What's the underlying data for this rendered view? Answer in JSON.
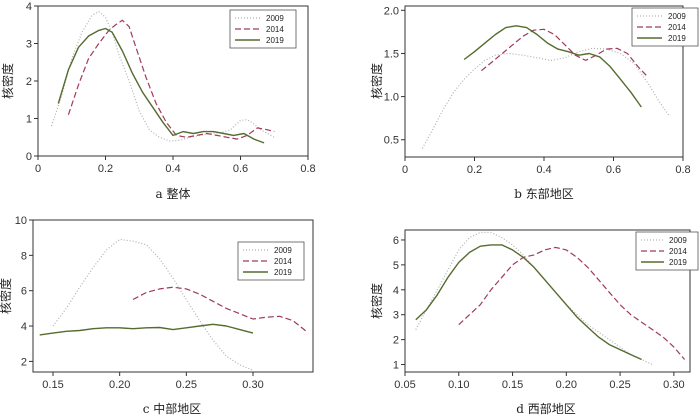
{
  "chart_data": [
    {
      "type": "line",
      "title": "a 整体",
      "ylabel": "核密度",
      "xlim": [
        0,
        0.8
      ],
      "ylim": [
        0,
        4
      ],
      "xticks": [
        0,
        0.2,
        0.4,
        0.6,
        0.8
      ],
      "xtick_labels": [
        "0",
        "0.2",
        "0.4",
        "0.6",
        "0.8"
      ],
      "yticks": [
        0,
        1,
        2,
        3,
        4
      ],
      "ytick_labels": [
        "0",
        "1",
        "2",
        "3",
        "4"
      ],
      "legend_position": "top-right",
      "series": [
        {
          "name": "2009",
          "color": "#b0b0b0",
          "style": "dotted",
          "x": [
            0.04,
            0.07,
            0.1,
            0.13,
            0.16,
            0.18,
            0.2,
            0.22,
            0.24,
            0.27,
            0.3,
            0.33,
            0.36,
            0.39,
            0.42,
            0.45,
            0.48,
            0.51,
            0.54,
            0.57,
            0.6,
            0.62,
            0.64,
            0.66,
            0.68,
            0.7
          ],
          "y": [
            0.8,
            1.6,
            2.6,
            3.3,
            3.75,
            3.85,
            3.7,
            3.3,
            2.7,
            2.0,
            1.2,
            0.7,
            0.5,
            0.4,
            0.42,
            0.5,
            0.55,
            0.6,
            0.62,
            0.7,
            0.95,
            0.97,
            0.85,
            0.7,
            0.6,
            0.5
          ]
        },
        {
          "name": "2014",
          "color": "#a03a5a",
          "style": "dashed",
          "x": [
            0.09,
            0.12,
            0.15,
            0.18,
            0.21,
            0.23,
            0.25,
            0.27,
            0.29,
            0.32,
            0.35,
            0.38,
            0.41,
            0.44,
            0.47,
            0.5,
            0.53,
            0.56,
            0.59,
            0.62,
            0.65,
            0.68,
            0.7
          ],
          "y": [
            1.1,
            1.9,
            2.6,
            3.0,
            3.35,
            3.5,
            3.62,
            3.45,
            2.9,
            2.1,
            1.4,
            0.9,
            0.55,
            0.5,
            0.55,
            0.6,
            0.55,
            0.5,
            0.45,
            0.55,
            0.75,
            0.7,
            0.65
          ]
        },
        {
          "name": "2019",
          "color": "#556b2f",
          "style": "solid",
          "x": [
            0.06,
            0.09,
            0.12,
            0.15,
            0.18,
            0.2,
            0.22,
            0.25,
            0.28,
            0.31,
            0.34,
            0.37,
            0.4,
            0.43,
            0.46,
            0.49,
            0.52,
            0.55,
            0.58,
            0.61,
            0.64,
            0.67
          ],
          "y": [
            1.4,
            2.3,
            2.9,
            3.2,
            3.35,
            3.4,
            3.3,
            2.8,
            2.2,
            1.7,
            1.3,
            0.9,
            0.55,
            0.65,
            0.6,
            0.65,
            0.65,
            0.6,
            0.55,
            0.6,
            0.45,
            0.35
          ]
        }
      ]
    },
    {
      "type": "line",
      "title": "b 东部地区",
      "ylabel": "核密度",
      "xlim": [
        0,
        0.8
      ],
      "ylim": [
        0.3,
        2.05
      ],
      "xticks": [
        0,
        0.2,
        0.4,
        0.6,
        0.8
      ],
      "xtick_labels": [
        "0",
        "0.2",
        "0.4",
        "0.6",
        "0.8"
      ],
      "yticks": [
        0.5,
        1.0,
        1.5,
        2.0
      ],
      "ytick_labels": [
        "0.5",
        "1.0",
        "1.5",
        "2.0"
      ],
      "legend_position": "top-right",
      "series": [
        {
          "name": "2009",
          "color": "#b0b0b0",
          "style": "dotted",
          "x": [
            0.05,
            0.08,
            0.11,
            0.14,
            0.17,
            0.2,
            0.23,
            0.26,
            0.3,
            0.34,
            0.38,
            0.42,
            0.46,
            0.5,
            0.54,
            0.58,
            0.62,
            0.66,
            0.7,
            0.73,
            0.76
          ],
          "y": [
            0.4,
            0.62,
            0.85,
            1.05,
            1.2,
            1.32,
            1.42,
            1.48,
            1.5,
            1.48,
            1.45,
            1.42,
            1.45,
            1.52,
            1.56,
            1.55,
            1.5,
            1.38,
            1.15,
            0.95,
            0.78
          ]
        },
        {
          "name": "2014",
          "color": "#a03a5a",
          "style": "dashed",
          "x": [
            0.22,
            0.25,
            0.28,
            0.31,
            0.34,
            0.37,
            0.4,
            0.43,
            0.46,
            0.49,
            0.52,
            0.55,
            0.58,
            0.61,
            0.64,
            0.67,
            0.7
          ],
          "y": [
            1.3,
            1.4,
            1.5,
            1.6,
            1.7,
            1.77,
            1.78,
            1.72,
            1.6,
            1.48,
            1.42,
            1.48,
            1.55,
            1.56,
            1.5,
            1.35,
            1.22
          ]
        },
        {
          "name": "2019",
          "color": "#556b2f",
          "style": "solid",
          "x": [
            0.17,
            0.2,
            0.23,
            0.26,
            0.29,
            0.32,
            0.35,
            0.38,
            0.41,
            0.44,
            0.47,
            0.5,
            0.53,
            0.56,
            0.59,
            0.62,
            0.65,
            0.68
          ],
          "y": [
            1.43,
            1.52,
            1.62,
            1.72,
            1.8,
            1.82,
            1.8,
            1.72,
            1.62,
            1.55,
            1.52,
            1.48,
            1.5,
            1.46,
            1.35,
            1.2,
            1.05,
            0.88
          ]
        }
      ]
    },
    {
      "type": "line",
      "title": "c 中部地区",
      "ylabel": "核密度",
      "xlim": [
        0.135,
        0.345
      ],
      "ylim": [
        1.4,
        10.0
      ],
      "xticks": [
        0.15,
        0.2,
        0.25,
        0.3
      ],
      "xtick_labels": [
        "0.15",
        "0.20",
        "0.25",
        "0.30"
      ],
      "yticks": [
        2,
        4,
        6,
        8,
        10
      ],
      "ytick_labels": [
        "2",
        "4",
        "6",
        "8",
        "10"
      ],
      "legend_position": "top-right",
      "series": [
        {
          "name": "2009",
          "color": "#b0b0b0",
          "style": "dotted",
          "x": [
            0.15,
            0.16,
            0.17,
            0.18,
            0.19,
            0.2,
            0.21,
            0.22,
            0.23,
            0.24,
            0.25,
            0.26,
            0.27,
            0.28,
            0.29,
            0.3
          ],
          "y": [
            4.0,
            5.0,
            6.2,
            7.3,
            8.3,
            8.9,
            8.8,
            8.6,
            7.8,
            6.7,
            5.5,
            4.3,
            3.2,
            2.3,
            1.8,
            1.5
          ]
        },
        {
          "name": "2014",
          "color": "#a03a5a",
          "style": "dashed",
          "x": [
            0.21,
            0.22,
            0.23,
            0.24,
            0.25,
            0.26,
            0.27,
            0.28,
            0.29,
            0.3,
            0.31,
            0.32,
            0.33,
            0.34
          ],
          "y": [
            5.5,
            5.9,
            6.1,
            6.2,
            6.1,
            5.8,
            5.4,
            5.0,
            4.7,
            4.4,
            4.5,
            4.55,
            4.3,
            3.7
          ]
        },
        {
          "name": "2019",
          "color": "#556b2f",
          "style": "solid",
          "x": [
            0.14,
            0.15,
            0.16,
            0.17,
            0.18,
            0.19,
            0.2,
            0.21,
            0.22,
            0.23,
            0.24,
            0.25,
            0.26,
            0.27,
            0.28,
            0.29,
            0.3
          ],
          "y": [
            3.5,
            3.6,
            3.7,
            3.75,
            3.85,
            3.9,
            3.9,
            3.85,
            3.9,
            3.92,
            3.8,
            3.9,
            4.0,
            4.1,
            4.0,
            3.8,
            3.6
          ]
        }
      ]
    },
    {
      "type": "line",
      "title": "d 西部地区",
      "ylabel": "核密度",
      "xlim": [
        0.05,
        0.315
      ],
      "ylim": [
        0.7,
        6.4
      ],
      "xticks": [
        0.05,
        0.1,
        0.15,
        0.2,
        0.25,
        0.3
      ],
      "xtick_labels": [
        "0.05",
        "0.10",
        "0.15",
        "0.20",
        "0.25",
        "0.30"
      ],
      "yticks": [
        1,
        2,
        3,
        4,
        5,
        6
      ],
      "ytick_labels": [
        "1",
        "2",
        "3",
        "4",
        "5",
        "6"
      ],
      "legend_position": "top-right",
      "series": [
        {
          "name": "2009",
          "color": "#b0b0b0",
          "style": "dotted",
          "x": [
            0.06,
            0.07,
            0.08,
            0.09,
            0.1,
            0.11,
            0.12,
            0.13,
            0.14,
            0.15,
            0.16,
            0.17,
            0.18,
            0.19,
            0.2,
            0.21,
            0.22,
            0.23,
            0.24,
            0.25,
            0.26,
            0.27,
            0.28
          ],
          "y": [
            2.4,
            3.2,
            4.0,
            4.8,
            5.6,
            6.1,
            6.3,
            6.3,
            6.1,
            5.8,
            5.4,
            4.9,
            4.4,
            3.9,
            3.4,
            3.0,
            2.6,
            2.3,
            2.0,
            1.7,
            1.4,
            1.2,
            1.0
          ]
        },
        {
          "name": "2014",
          "color": "#a03a5a",
          "style": "dashed",
          "x": [
            0.1,
            0.11,
            0.12,
            0.13,
            0.14,
            0.15,
            0.16,
            0.17,
            0.18,
            0.19,
            0.2,
            0.21,
            0.22,
            0.23,
            0.24,
            0.25,
            0.26,
            0.27,
            0.28,
            0.29,
            0.3,
            0.31
          ],
          "y": [
            2.6,
            3.0,
            3.4,
            4.0,
            4.5,
            5.0,
            5.3,
            5.4,
            5.6,
            5.7,
            5.6,
            5.3,
            4.9,
            4.4,
            3.9,
            3.4,
            3.0,
            2.7,
            2.4,
            2.1,
            1.7,
            1.2
          ]
        },
        {
          "name": "2019",
          "color": "#556b2f",
          "style": "solid",
          "x": [
            0.06,
            0.07,
            0.08,
            0.09,
            0.1,
            0.11,
            0.12,
            0.13,
            0.14,
            0.15,
            0.16,
            0.17,
            0.18,
            0.19,
            0.2,
            0.21,
            0.22,
            0.23,
            0.24,
            0.25,
            0.26,
            0.27
          ],
          "y": [
            2.8,
            3.2,
            3.8,
            4.5,
            5.1,
            5.5,
            5.75,
            5.8,
            5.8,
            5.6,
            5.3,
            4.9,
            4.4,
            3.9,
            3.4,
            2.9,
            2.5,
            2.1,
            1.8,
            1.6,
            1.4,
            1.2
          ]
        }
      ]
    }
  ]
}
